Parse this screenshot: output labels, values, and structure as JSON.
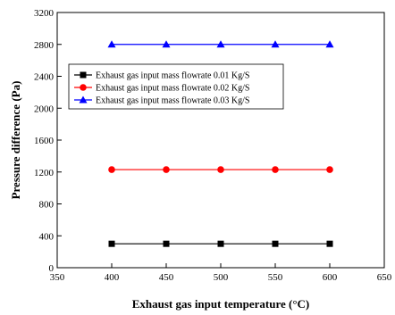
{
  "chart_data": {
    "type": "line",
    "xlabel": "Exhaust gas input temperature (°C)",
    "ylabel": "Pressure difference (Pa)",
    "xlim": [
      350,
      650
    ],
    "ylim": [
      0,
      3200
    ],
    "xticks": [
      350,
      400,
      450,
      500,
      550,
      600,
      650
    ],
    "yticks": [
      0,
      400,
      800,
      1200,
      1600,
      2000,
      2400,
      2800,
      3200
    ],
    "grid": false,
    "legend_position": "center-left",
    "x": [
      400,
      450,
      500,
      550,
      600
    ],
    "series": [
      {
        "name": "Exhaust gas input mass flowrate 0.01 Kg/S",
        "values": [
          300,
          300,
          300,
          300,
          300
        ],
        "color": "#000000",
        "marker": "square"
      },
      {
        "name": "Exhaust gas input mass flowrate 0.02 Kg/S",
        "values": [
          1230,
          1230,
          1230,
          1230,
          1230
        ],
        "color": "#ff0000",
        "marker": "circle"
      },
      {
        "name": "Exhaust gas input mass flowrate 0.03 Kg/S",
        "values": [
          2800,
          2800,
          2800,
          2800,
          2800
        ],
        "color": "#0000ff",
        "marker": "triangle"
      }
    ]
  }
}
